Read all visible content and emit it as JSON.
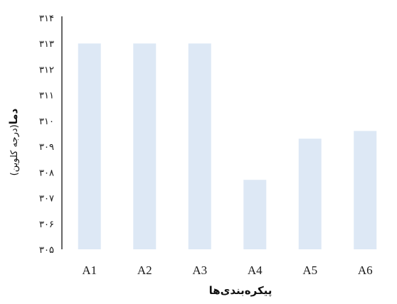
{
  "chart_data": {
    "type": "bar",
    "categories": [
      "A1",
      "A2",
      "A3",
      "A4",
      "A5",
      "A6"
    ],
    "values": [
      313.0,
      313.0,
      313.0,
      307.7,
      309.3,
      309.6
    ],
    "ylim": [
      305,
      314
    ],
    "yticks": [
      "۳۰۵",
      "۳۰۶",
      "۳۰۷",
      "۳۰۸",
      "۳۰۹",
      "۳۱۰",
      "۳۱۱",
      "۳۱۲",
      "۳۱۳",
      "۳۱۴"
    ],
    "xlabel": "پیکره‌بندی‌ها",
    "ylabel_bold": "دما",
    "ylabel_rest": "(درجه کلوین)",
    "bar_color": "#dde8f5",
    "axis_color": "#000000",
    "grid": false,
    "legend": "none"
  }
}
